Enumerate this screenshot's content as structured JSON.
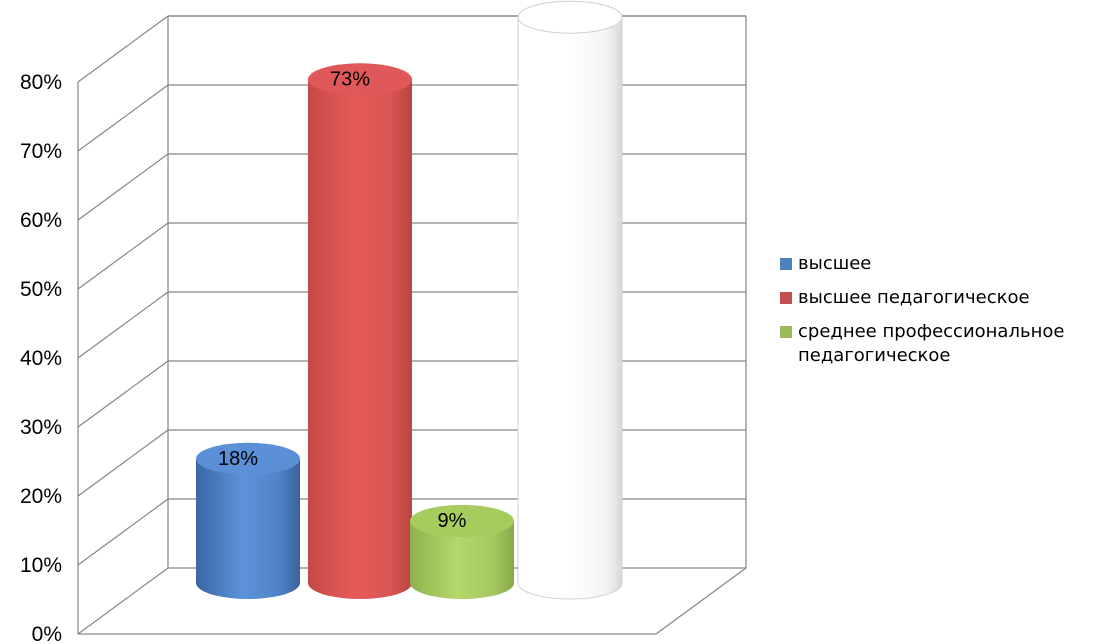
{
  "chart_data": {
    "type": "bar",
    "style": "3d-cylinder",
    "categories": [
      "высшее",
      "высшее педагогическое",
      "среднее профессиональное педагогическое",
      ""
    ],
    "values": [
      18,
      73,
      9,
      82
    ],
    "data_labels": [
      "18%",
      "73%",
      "9%",
      ""
    ],
    "colors": [
      "#4f81bd",
      "#c0504d",
      "#9bbb59",
      "#ffffff"
    ],
    "ylim": [
      0,
      80
    ],
    "yticks": [
      0,
      10,
      20,
      30,
      40,
      50,
      60,
      70,
      80
    ],
    "ytick_labels": [
      "0%",
      "10%",
      "20%",
      "30%",
      "40%",
      "50%",
      "60%",
      "70%",
      "80%"
    ],
    "grid": true,
    "legend_position": "right",
    "legend": [
      {
        "label": "высшее",
        "color": "#4f81bd"
      },
      {
        "label": "высшее педагогическое",
        "color": "#c0504d"
      },
      {
        "label": "среднее профессиональное педагогическое",
        "color": "#9bbb59"
      }
    ],
    "title": "",
    "xlabel": "",
    "ylabel": ""
  }
}
